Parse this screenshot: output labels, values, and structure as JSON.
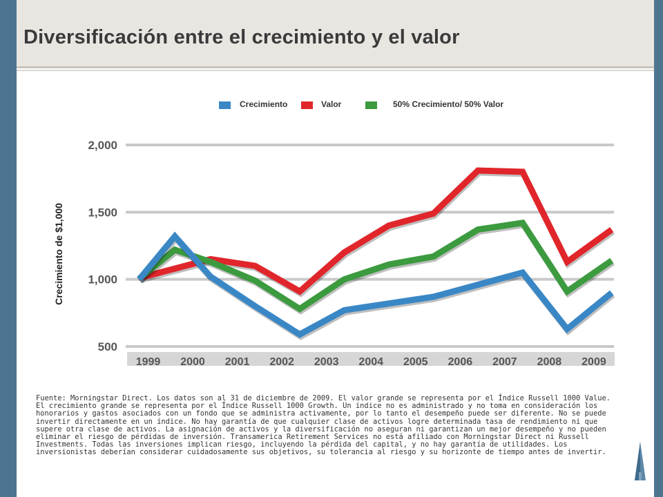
{
  "title": "Diversificación entre el crecimiento y el valor",
  "source_text": "Fuente: Morningstar Direct. Los datos son al 31 de diciembre de 2009. El valor grande se representa por el Índice Russell 1000 Value. El crecimiento grande se representa por el Índice Russell 1000 Growth. Un índice no es administrado y no toma en consideración los honorarios y gastos asociados con un fondo que se administra activamente, por lo tanto el desempeño puede ser diferente. No se puede invertir directamente en un índice. No hay garantía de que cualquier clase de activos logre determinada tasa de rendimiento ni que supere otra clase de activos. La asignación de activos y la diversificación no aseguran ni garantizan un mejor desempeño y no pueden eliminar el riesgo de pérdidas de inversión. Transamerica Retirement Services no está afiliado con Morningstar Direct ni Russell Investments. Todas las inversiones implican riesgo, incluyendo la pérdida del capital, y no hay garantía de utilidades. Los inversionistas deberían considerar cuidadosamente sus objetivos, su tolerancia al riesgo y su horizonte de tiempo antes de invertir.",
  "chart_data": {
    "type": "line",
    "title": "",
    "xlabel": "",
    "ylabel": "Crecimiento de $1,000",
    "categories": [
      "1999",
      "2000",
      "2001",
      "2002",
      "2003",
      "2004",
      "2005",
      "2006",
      "2007",
      "2008",
      "2009"
    ],
    "ylim": [
      500,
      2000
    ],
    "yticks": [
      500,
      1000,
      1500,
      2000
    ],
    "ytick_labels": [
      "500",
      "1,000",
      "1,500",
      "2,000"
    ],
    "grid": true,
    "legend_position": "top",
    "series": [
      {
        "name": "Crecimiento",
        "color": "#3a87c6",
        "values": [
          1000,
          1320,
          1020,
          800,
          590,
          770,
          820,
          870,
          960,
          1050,
          630,
          900
        ]
      },
      {
        "name": "Valor",
        "color": "#e0262b",
        "values": [
          1010,
          1080,
          1150,
          1100,
          910,
          1200,
          1400,
          1490,
          1810,
          1800,
          1130,
          1370
        ]
      },
      {
        "name": "50% Crecimiento/ 50% Valor",
        "color": "#3c9a3f",
        "values": [
          1005,
          1220,
          1130,
          990,
          780,
          1000,
          1110,
          1170,
          1370,
          1420,
          910,
          1140
        ]
      }
    ],
    "x_values": [
      1998.8,
      1999.6,
      2000.4,
      2001.4,
      2002.4,
      2003.4,
      2004.4,
      2005.4,
      2006.4,
      2007.4,
      2008.4,
      2009.4
    ]
  }
}
